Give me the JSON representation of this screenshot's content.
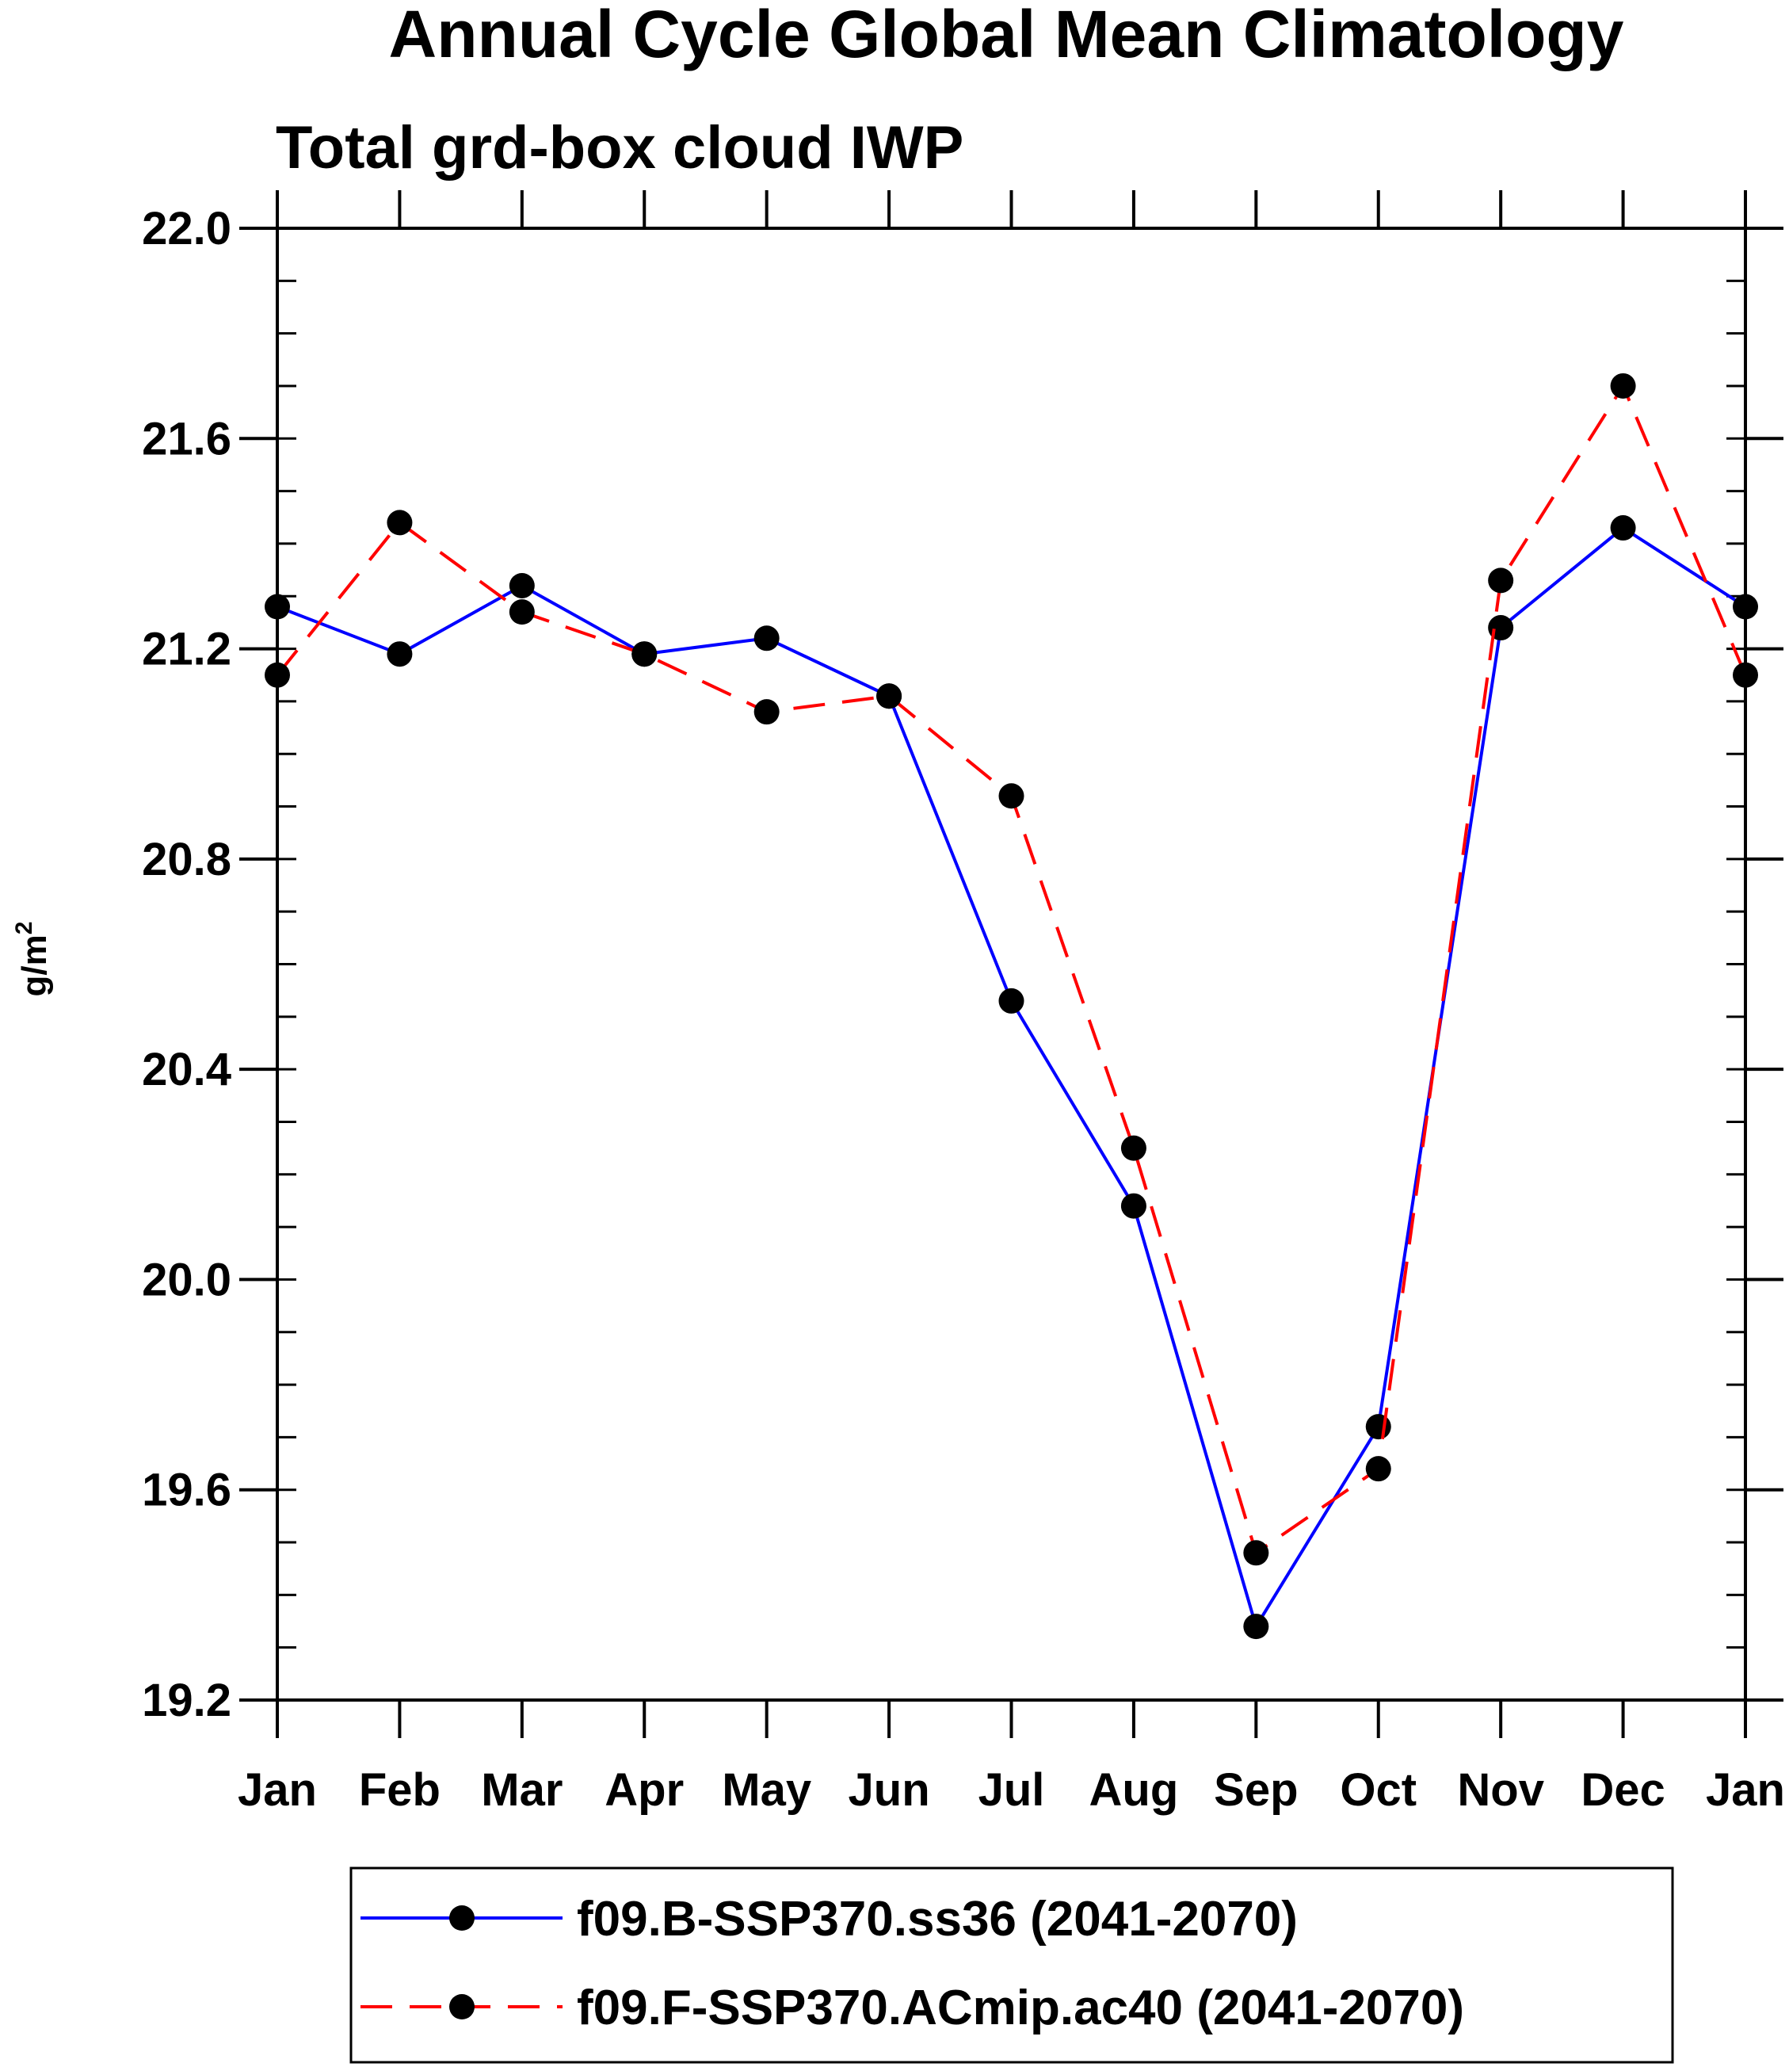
{
  "chart_data": {
    "type": "line",
    "title": "Annual Cycle Global Mean Climatology",
    "subtitle": "Total grd-box cloud IWP",
    "ylabel": "g/m",
    "ylabel_superscript": "2",
    "ylim": [
      19.2,
      22.0
    ],
    "yticks": [
      "19.2",
      "19.6",
      "20.0",
      "20.4",
      "20.8",
      "21.2",
      "21.6",
      "22.0"
    ],
    "y_minor_step": 0.1,
    "categories": [
      "Jan",
      "Feb",
      "Mar",
      "Apr",
      "May",
      "Jun",
      "Jul",
      "Aug",
      "Sep",
      "Oct",
      "Nov",
      "Dec",
      "Jan"
    ],
    "grid": false,
    "legend_position": "bottom",
    "series": [
      {
        "name": "f09.B-SSP370.ss36 (2041-2070)",
        "color": "#0000ff",
        "dash": "solid",
        "marker": "filled-circle",
        "values": [
          21.28,
          21.19,
          21.32,
          21.19,
          21.22,
          21.11,
          20.53,
          20.14,
          19.34,
          19.72,
          21.24,
          21.43,
          21.28
        ]
      },
      {
        "name": "f09.F-SSP370.ACmip.ac40 (2041-2070)",
        "color": "#ff0000",
        "dash": "dashed",
        "marker": "filled-circle",
        "values": [
          21.15,
          21.44,
          21.27,
          21.19,
          21.08,
          21.11,
          20.92,
          20.25,
          19.48,
          19.64,
          21.33,
          21.7,
          21.15
        ]
      }
    ]
  }
}
